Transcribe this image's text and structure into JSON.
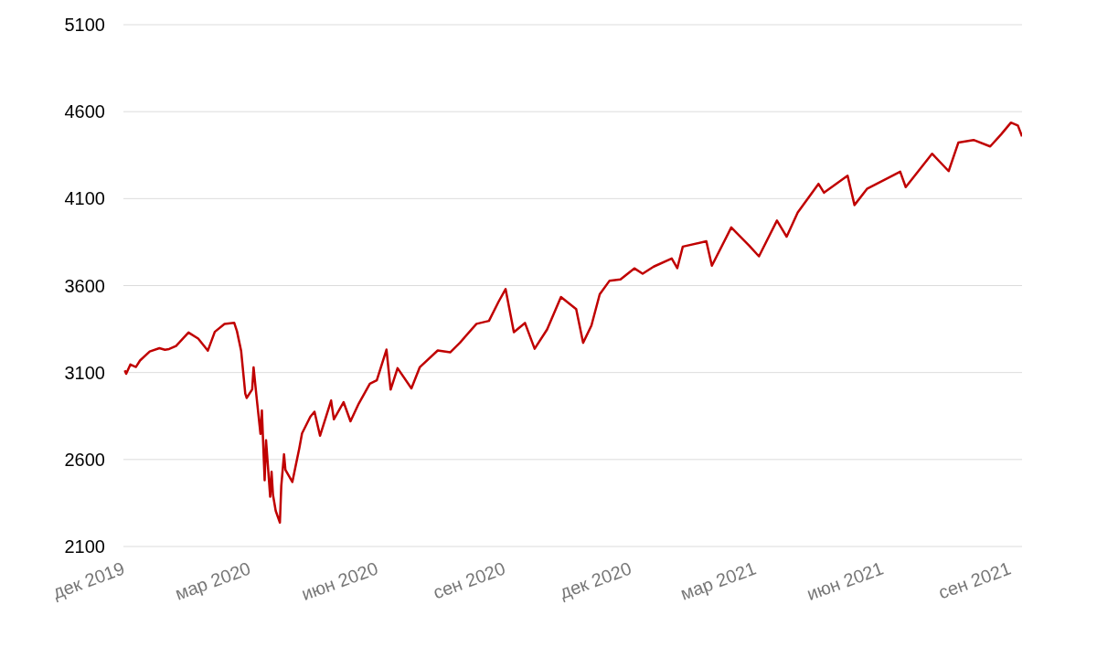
{
  "chart_data": {
    "type": "line",
    "grid": "y",
    "line_style": "solid",
    "xlim": [
      "2019-12-01",
      "2021-09-10"
    ],
    "xticks": [
      {
        "value": "2019-12-01",
        "label": "дек 2019"
      },
      {
        "value": "2020-03-01",
        "label": "мар 2020"
      },
      {
        "value": "2020-06-01",
        "label": "июн 2020"
      },
      {
        "value": "2020-09-01",
        "label": "сен 2020"
      },
      {
        "value": "2020-12-01",
        "label": "дек 2020"
      },
      {
        "value": "2021-03-01",
        "label": "мар 2021"
      },
      {
        "value": "2021-06-01",
        "label": "июн 2021"
      },
      {
        "value": "2021-09-01",
        "label": "сен 2021"
      }
    ],
    "ylim": [
      2100,
      5100
    ],
    "yticks": [
      2100,
      2600,
      3100,
      3600,
      4100,
      4600,
      5100
    ],
    "x": [
      "2019-12-02",
      "2019-12-03",
      "2019-12-06",
      "2019-12-10",
      "2019-12-13",
      "2019-12-20",
      "2019-12-27",
      "2019-12-31",
      "2020-01-03",
      "2020-01-08",
      "2020-01-17",
      "2020-01-24",
      "2020-01-31",
      "2020-02-05",
      "2020-02-12",
      "2020-02-19",
      "2020-02-21",
      "2020-02-24",
      "2020-02-27",
      "2020-02-28",
      "2020-03-03",
      "2020-03-04",
      "2020-03-06",
      "2020-03-09",
      "2020-03-10",
      "2020-03-12",
      "2020-03-13",
      "2020-03-16",
      "2020-03-17",
      "2020-03-18",
      "2020-03-20",
      "2020-03-23",
      "2020-03-24",
      "2020-03-26",
      "2020-03-27",
      "2020-04-01",
      "2020-04-06",
      "2020-04-08",
      "2020-04-14",
      "2020-04-17",
      "2020-04-21",
      "2020-04-29",
      "2020-05-01",
      "2020-05-08",
      "2020-05-13",
      "2020-05-19",
      "2020-05-27",
      "2020-06-01",
      "2020-06-08",
      "2020-06-11",
      "2020-06-16",
      "2020-06-26",
      "2020-07-02",
      "2020-07-15",
      "2020-07-24",
      "2020-07-31",
      "2020-08-12",
      "2020-08-21",
      "2020-08-28",
      "2020-09-02",
      "2020-09-08",
      "2020-09-16",
      "2020-09-23",
      "2020-10-02",
      "2020-10-12",
      "2020-10-23",
      "2020-10-28",
      "2020-11-03",
      "2020-11-09",
      "2020-11-16",
      "2020-11-24",
      "2020-12-04",
      "2020-12-10",
      "2020-12-18",
      "2020-12-31",
      "2021-01-04",
      "2021-01-08",
      "2021-01-25",
      "2021-01-29",
      "2021-02-12",
      "2021-02-25",
      "2021-03-04",
      "2021-03-17",
      "2021-03-24",
      "2021-04-01",
      "2021-04-16",
      "2021-04-20",
      "2021-05-07",
      "2021-05-12",
      "2021-05-21",
      "2021-06-07",
      "2021-06-14",
      "2021-06-18",
      "2021-07-07",
      "2021-07-19",
      "2021-07-26",
      "2021-08-06",
      "2021-08-18",
      "2021-08-26",
      "2021-09-02",
      "2021-09-07",
      "2021-09-10"
    ],
    "series": [
      {
        "color": "#c00000",
        "values": [
          3113,
          3093,
          3146,
          3132,
          3169,
          3221,
          3240,
          3231,
          3235,
          3253,
          3330,
          3295,
          3226,
          3334,
          3379,
          3386,
          3338,
          3226,
          2979,
          2954,
          3003,
          3130,
          2972,
          2747,
          2882,
          2481,
          2711,
          2386,
          2529,
          2398,
          2305,
          2237,
          2447,
          2630,
          2541,
          2471,
          2664,
          2750,
          2846,
          2875,
          2737,
          2939,
          2831,
          2930,
          2820,
          2922,
          3036,
          3056,
          3232,
          3002,
          3125,
          3009,
          3130,
          3227,
          3216,
          3271,
          3380,
          3397,
          3508,
          3580,
          3332,
          3385,
          3237,
          3348,
          3534,
          3465,
          3271,
          3370,
          3550,
          3627,
          3635,
          3699,
          3668,
          3709,
          3756,
          3700,
          3824,
          3855,
          3714,
          3934,
          3829,
          3768,
          3974,
          3881,
          4020,
          4185,
          4134,
          4232,
          4063,
          4156,
          4226,
          4255,
          4166,
          4358,
          4258,
          4422,
          4437,
          4400,
          4470,
          4537,
          4520,
          4458
        ]
      }
    ]
  }
}
